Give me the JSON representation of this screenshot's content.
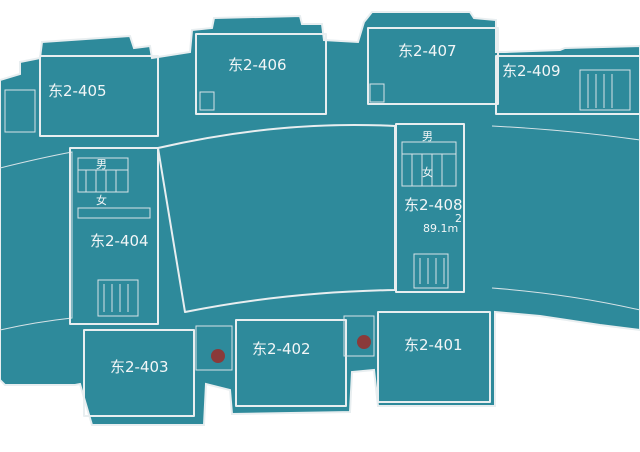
{
  "plan": {
    "background_color": "#2e8a9b",
    "line_color": "#e8eef0",
    "marker_color": "#8a3a3a",
    "rooms": [
      {
        "id": "r405",
        "label": "东2-405"
      },
      {
        "id": "r406",
        "label": "东2-406"
      },
      {
        "id": "r407",
        "label": "东2-407"
      },
      {
        "id": "r409",
        "label": "东2-409"
      },
      {
        "id": "r404",
        "label": "东2-404"
      },
      {
        "id": "r408",
        "label": "东2-408",
        "area_value": "89.1m",
        "area_sup": "2"
      },
      {
        "id": "r403",
        "label": "东2-403"
      },
      {
        "id": "r402",
        "label": "东2-402"
      },
      {
        "id": "r401",
        "label": "东2-401"
      }
    ],
    "restrooms": [
      {
        "id": "wc-left",
        "male": "男",
        "female": "女"
      },
      {
        "id": "wc-right",
        "male": "男",
        "female": "女"
      }
    ],
    "markers": [
      {
        "id": "marker-1"
      },
      {
        "id": "marker-2"
      }
    ]
  }
}
